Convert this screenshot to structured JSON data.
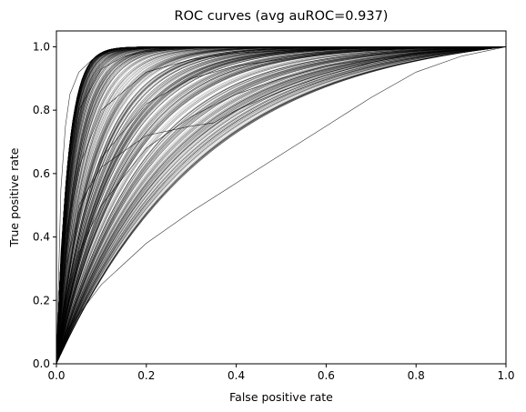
{
  "chart_data": {
    "type": "line",
    "title": "ROC curves (avg auROC=0.937)",
    "xlabel": "False positive rate",
    "ylabel": "True positive rate",
    "xlim": [
      0.0,
      1.0
    ],
    "ylim": [
      0.0,
      1.05
    ],
    "xticks": [
      "0.0",
      "0.2",
      "0.4",
      "0.6",
      "0.8",
      "1.0"
    ],
    "yticks": [
      "0.0",
      "0.2",
      "0.4",
      "0.6",
      "0.8",
      "1.0"
    ],
    "grid": false,
    "legend": "none",
    "average_auROC": 0.937,
    "line_color": "#000000",
    "representative_series": [
      {
        "x": [
          0,
          0.01,
          0.02,
          0.05,
          0.1,
          0.15,
          0.2,
          0.3,
          0.4,
          0.5,
          0.6,
          0.8,
          1.0
        ],
        "y": [
          0,
          0.35,
          0.55,
          0.8,
          0.93,
          0.97,
          0.985,
          0.995,
          1.0,
          1.0,
          1.0,
          1.0,
          1.0
        ]
      },
      {
        "x": [
          0,
          0.01,
          0.02,
          0.05,
          0.1,
          0.2,
          0.3,
          0.4,
          0.6,
          0.8,
          1.0
        ],
        "y": [
          0,
          0.25,
          0.4,
          0.62,
          0.8,
          0.92,
          0.96,
          0.98,
          0.995,
          1.0,
          1.0
        ]
      },
      {
        "x": [
          0,
          0.02,
          0.05,
          0.1,
          0.2,
          0.3,
          0.4,
          0.6,
          0.8,
          1.0
        ],
        "y": [
          0,
          0.3,
          0.48,
          0.65,
          0.82,
          0.9,
          0.94,
          0.98,
          0.995,
          1.0
        ]
      },
      {
        "x": [
          0,
          0.02,
          0.05,
          0.1,
          0.2,
          0.3,
          0.4,
          0.5,
          0.6,
          0.8,
          1.0
        ],
        "y": [
          0,
          0.2,
          0.35,
          0.5,
          0.68,
          0.78,
          0.85,
          0.9,
          0.94,
          0.98,
          1.0
        ]
      },
      {
        "x": [
          0,
          0.05,
          0.1,
          0.2,
          0.3,
          0.35,
          0.4,
          0.5,
          0.6,
          0.7,
          0.8,
          1.0
        ],
        "y": [
          0,
          0.5,
          0.62,
          0.72,
          0.75,
          0.76,
          0.8,
          0.86,
          0.91,
          0.95,
          0.98,
          1.0
        ]
      },
      {
        "x": [
          0,
          0.02,
          0.1,
          0.2,
          0.3,
          0.4,
          0.5,
          0.6,
          0.7,
          0.8,
          0.9,
          1.0
        ],
        "y": [
          0,
          0.1,
          0.25,
          0.38,
          0.48,
          0.57,
          0.66,
          0.75,
          0.84,
          0.92,
          0.97,
          1.0
        ]
      },
      {
        "x": [
          0,
          0.01,
          0.02,
          0.03,
          0.05,
          0.08,
          0.1,
          0.15,
          0.2,
          0.3,
          0.5,
          1.0
        ],
        "y": [
          0,
          0.55,
          0.75,
          0.85,
          0.92,
          0.96,
          0.975,
          0.99,
          0.995,
          1.0,
          1.0,
          1.0
        ]
      }
    ]
  }
}
